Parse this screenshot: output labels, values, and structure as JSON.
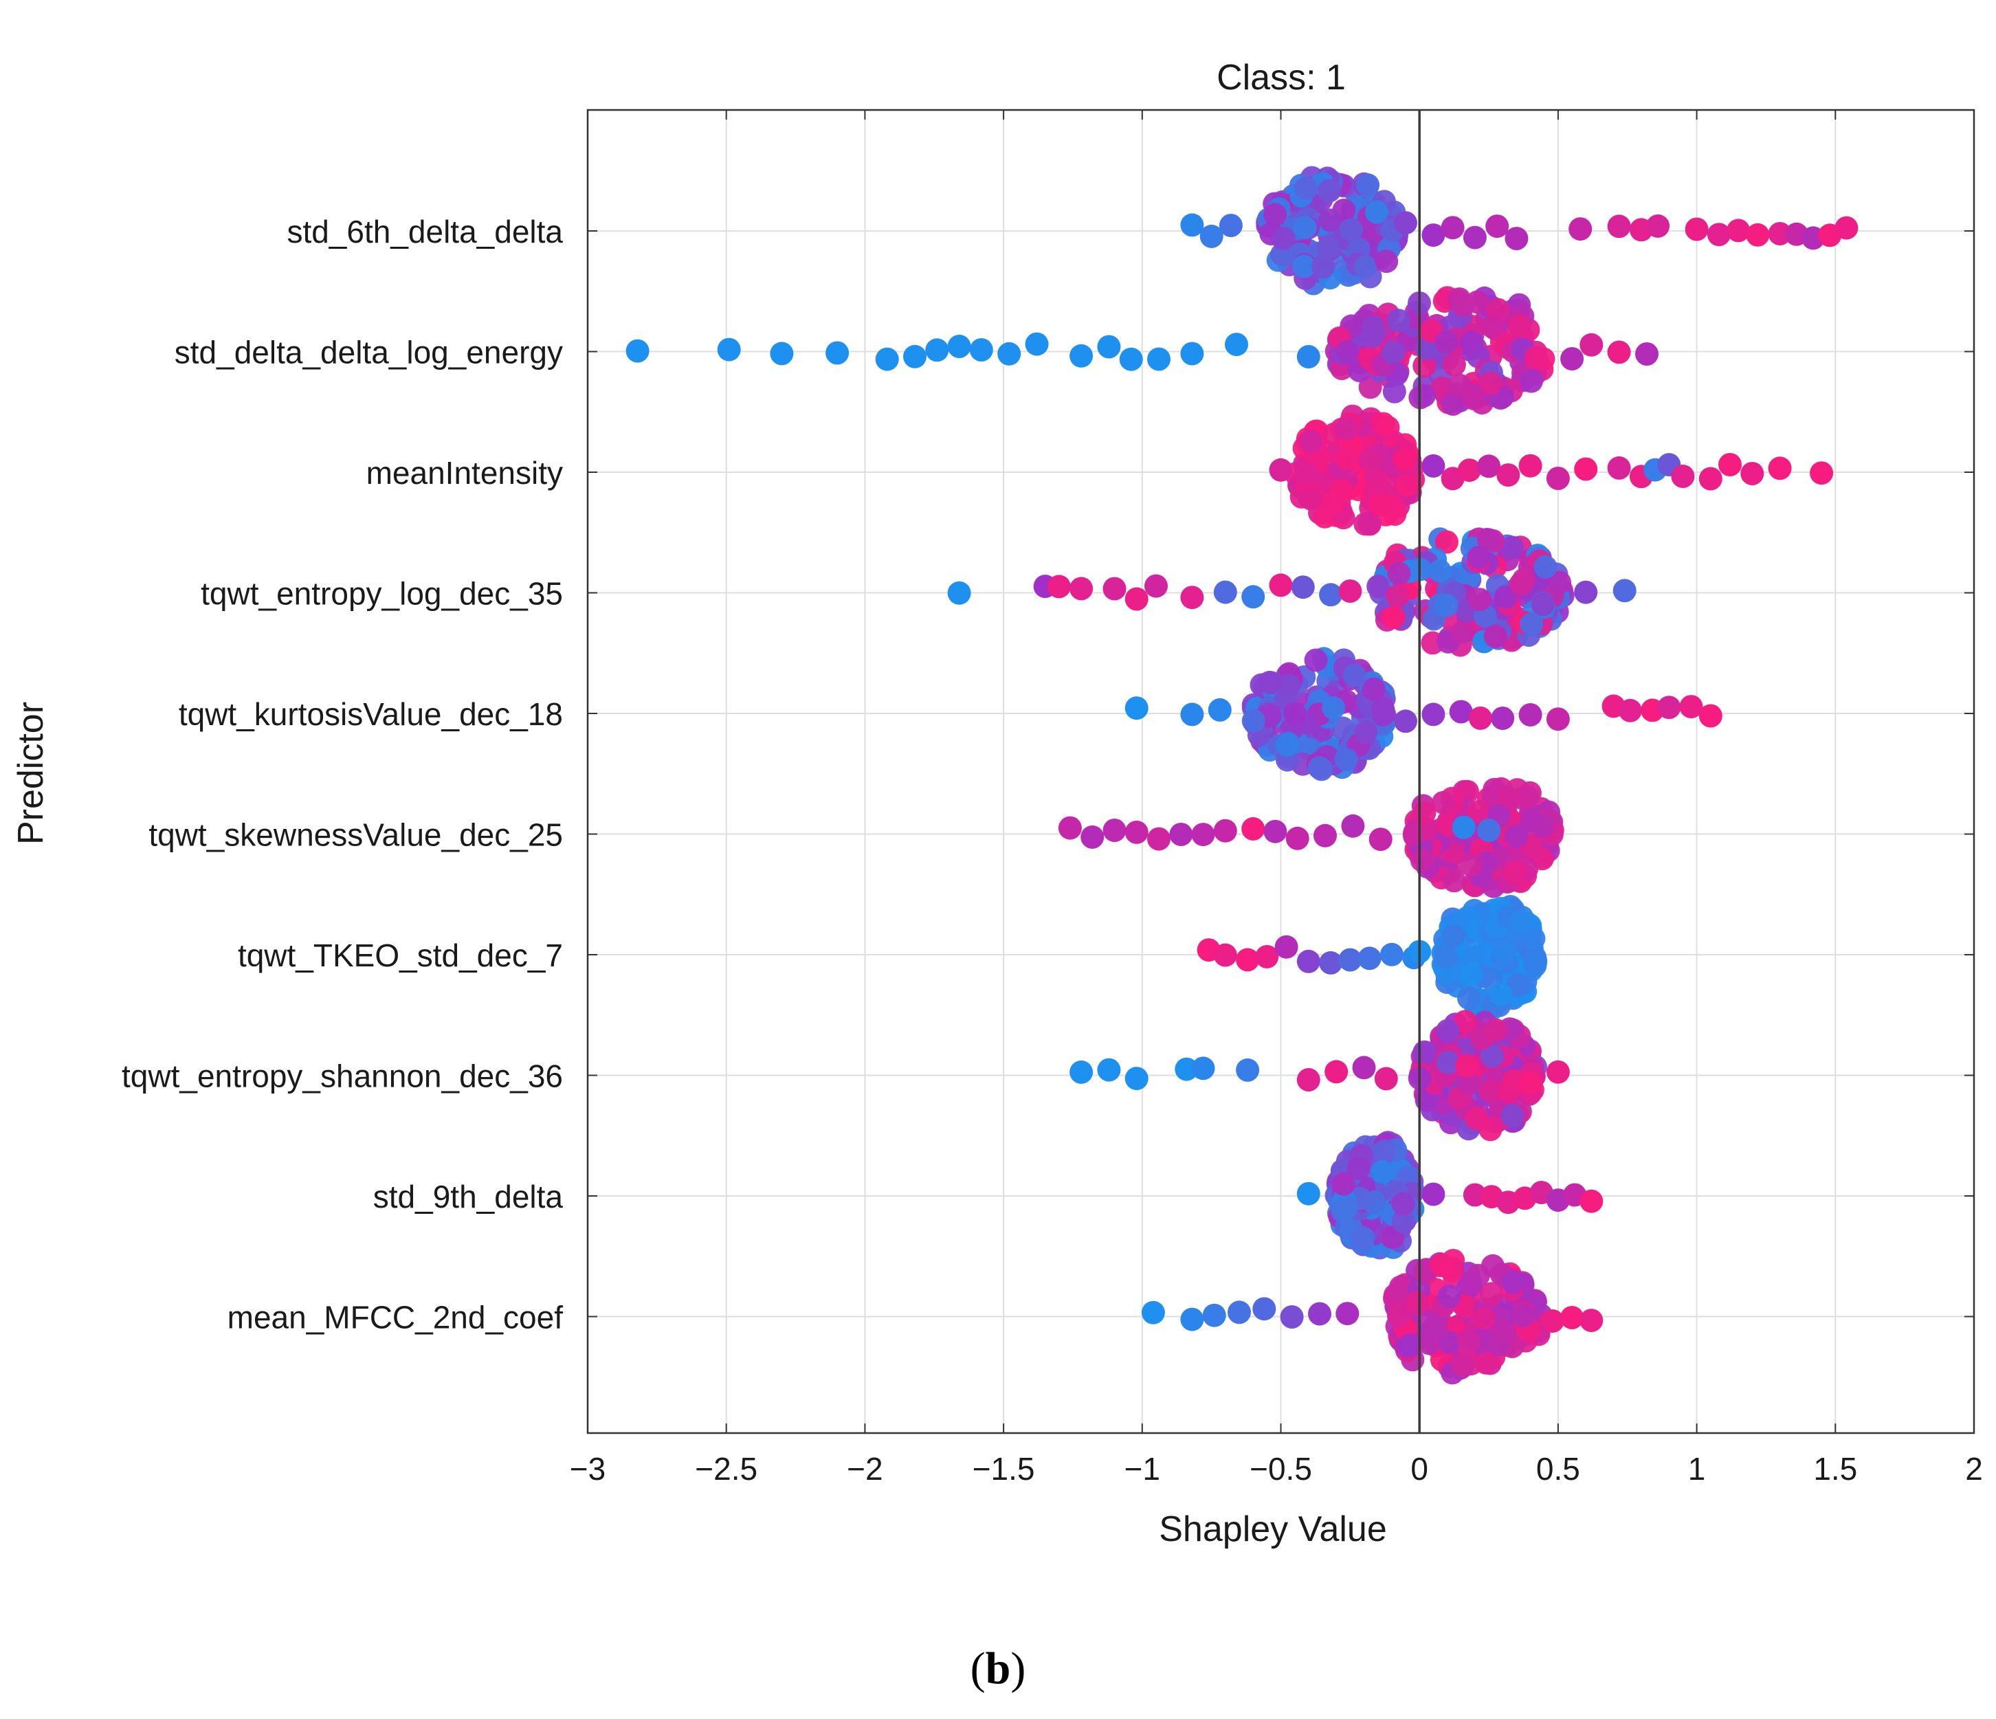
{
  "chart_data": {
    "type": "scatter",
    "subtype": "shapley-swarm",
    "title": "Class: 1",
    "xlabel": "Shapley Value",
    "ylabel": "Predictor",
    "xlim": [
      -3,
      2
    ],
    "xticks": [
      -3,
      -2.5,
      -2,
      -1.5,
      -1,
      -0.5,
      0,
      0.5,
      1,
      1.5,
      2
    ],
    "xtick_labels": [
      "−3",
      "−2.5",
      "−2",
      "−1.5",
      "−1",
      "−0.5",
      "0",
      "0.5",
      "1",
      "1.5",
      "2"
    ],
    "grid": true,
    "zero_line": 0,
    "color_scale": {
      "low": "#1e90f0",
      "mid": "#a030c8",
      "high": "#ff1a78"
    },
    "predictors": [
      {
        "name": "std_6th_delta_delta",
        "range": [
          -0.82,
          1.55
        ],
        "body": [
          -0.55,
          -0.08
        ],
        "center": -0.32,
        "tail_color": "high",
        "points": [
          {
            "x": -0.82,
            "c": 0.05
          },
          {
            "x": -0.75,
            "c": 0.1
          },
          {
            "x": -0.68,
            "c": 0.15
          },
          {
            "x": -0.05,
            "c": 0.4
          },
          {
            "x": 0.05,
            "c": 0.5
          },
          {
            "x": 0.12,
            "c": 0.6
          },
          {
            "x": 0.2,
            "c": 0.55
          },
          {
            "x": 0.28,
            "c": 0.65
          },
          {
            "x": 0.35,
            "c": 0.6
          },
          {
            "x": 0.58,
            "c": 0.7
          },
          {
            "x": 0.72,
            "c": 0.8
          },
          {
            "x": 0.8,
            "c": 0.85
          },
          {
            "x": 0.86,
            "c": 0.8
          },
          {
            "x": 1.0,
            "c": 0.9
          },
          {
            "x": 1.08,
            "c": 0.85
          },
          {
            "x": 1.15,
            "c": 0.9
          },
          {
            "x": 1.22,
            "c": 0.95
          },
          {
            "x": 1.3,
            "c": 0.85
          },
          {
            "x": 1.36,
            "c": 0.7
          },
          {
            "x": 1.42,
            "c": 0.6
          },
          {
            "x": 1.48,
            "c": 0.95
          },
          {
            "x": 1.54,
            "c": 0.9
          }
        ]
      },
      {
        "name": "std_delta_delta_log_energy",
        "range": [
          -2.82,
          0.82
        ],
        "body": [
          -0.3,
          0.45
        ],
        "center": 0.25,
        "tail_color": "low",
        "points": [
          {
            "x": -2.82,
            "c": 0.0
          },
          {
            "x": -2.49,
            "c": 0.0
          },
          {
            "x": -2.3,
            "c": 0.0
          },
          {
            "x": -2.1,
            "c": 0.0
          },
          {
            "x": -1.92,
            "c": 0.0
          },
          {
            "x": -1.82,
            "c": 0.0
          },
          {
            "x": -1.74,
            "c": 0.0
          },
          {
            "x": -1.66,
            "c": 0.0
          },
          {
            "x": -1.58,
            "c": 0.0
          },
          {
            "x": -1.48,
            "c": 0.0
          },
          {
            "x": -1.38,
            "c": 0.0
          },
          {
            "x": -1.22,
            "c": 0.0
          },
          {
            "x": -1.12,
            "c": 0.0
          },
          {
            "x": -1.04,
            "c": 0.0
          },
          {
            "x": -0.94,
            "c": 0.0
          },
          {
            "x": -0.82,
            "c": 0.0
          },
          {
            "x": -0.66,
            "c": 0.0
          },
          {
            "x": -0.4,
            "c": 0.05
          },
          {
            "x": 0.55,
            "c": 0.6
          },
          {
            "x": 0.62,
            "c": 0.8
          },
          {
            "x": 0.72,
            "c": 0.9
          },
          {
            "x": 0.82,
            "c": 0.6
          }
        ]
      },
      {
        "name": "meanIntensity",
        "range": [
          -0.5,
          1.46
        ],
        "body": [
          -0.45,
          -0.02
        ],
        "center": -0.22,
        "tail_color": "high",
        "points": [
          {
            "x": -0.5,
            "c": 0.8
          },
          {
            "x": 0.05,
            "c": 0.5
          },
          {
            "x": 0.12,
            "c": 0.85
          },
          {
            "x": 0.18,
            "c": 0.9
          },
          {
            "x": 0.25,
            "c": 0.7
          },
          {
            "x": 0.32,
            "c": 0.85
          },
          {
            "x": 0.4,
            "c": 0.9
          },
          {
            "x": 0.5,
            "c": 0.75
          },
          {
            "x": 0.6,
            "c": 0.95
          },
          {
            "x": 0.72,
            "c": 0.8
          },
          {
            "x": 0.8,
            "c": 0.9
          },
          {
            "x": 0.85,
            "c": 0.1
          },
          {
            "x": 0.9,
            "c": 0.3
          },
          {
            "x": 0.95,
            "c": 0.85
          },
          {
            "x": 1.05,
            "c": 0.9
          },
          {
            "x": 1.12,
            "c": 0.95
          },
          {
            "x": 1.2,
            "c": 0.9
          },
          {
            "x": 1.3,
            "c": 0.95
          },
          {
            "x": 1.45,
            "c": 0.95
          }
        ]
      },
      {
        "name": "tqwt_entropy_log_dec_35",
        "range": [
          -1.66,
          0.74
        ],
        "body": [
          -0.15,
          0.52
        ],
        "center": 0.15,
        "tail_color": "mixed",
        "points": [
          {
            "x": -1.66,
            "c": 0.0
          },
          {
            "x": -1.35,
            "c": 0.5
          },
          {
            "x": -1.3,
            "c": 0.9
          },
          {
            "x": -1.22,
            "c": 0.85
          },
          {
            "x": -1.1,
            "c": 0.8
          },
          {
            "x": -1.02,
            "c": 0.9
          },
          {
            "x": -0.95,
            "c": 0.75
          },
          {
            "x": -0.82,
            "c": 0.85
          },
          {
            "x": -0.7,
            "c": 0.2
          },
          {
            "x": -0.6,
            "c": 0.1
          },
          {
            "x": -0.5,
            "c": 0.9
          },
          {
            "x": -0.42,
            "c": 0.3
          },
          {
            "x": -0.32,
            "c": 0.2
          },
          {
            "x": -0.25,
            "c": 0.85
          },
          {
            "x": 0.6,
            "c": 0.4
          },
          {
            "x": 0.74,
            "c": 0.2
          }
        ]
      },
      {
        "name": "tqwt_kurtosisValue_dec_18",
        "range": [
          -1.02,
          1.06
        ],
        "body": [
          -0.6,
          -0.12
        ],
        "center": -0.35,
        "tail_color": "high",
        "points": [
          {
            "x": -1.02,
            "c": 0.0
          },
          {
            "x": -0.82,
            "c": 0.05
          },
          {
            "x": -0.72,
            "c": 0.05
          },
          {
            "x": -0.05,
            "c": 0.4
          },
          {
            "x": 0.05,
            "c": 0.45
          },
          {
            "x": 0.15,
            "c": 0.5
          },
          {
            "x": 0.22,
            "c": 0.85
          },
          {
            "x": 0.3,
            "c": 0.55
          },
          {
            "x": 0.4,
            "c": 0.6
          },
          {
            "x": 0.5,
            "c": 0.7
          },
          {
            "x": 0.7,
            "c": 0.9
          },
          {
            "x": 0.76,
            "c": 0.85
          },
          {
            "x": 0.84,
            "c": 0.95
          },
          {
            "x": 0.9,
            "c": 0.8
          },
          {
            "x": 0.98,
            "c": 0.9
          },
          {
            "x": 1.05,
            "c": 0.95
          }
        ]
      },
      {
        "name": "tqwt_skewnessValue_dec_25",
        "range": [
          -1.26,
          0.48
        ],
        "body": [
          -0.02,
          0.48
        ],
        "center": 0.25,
        "tail_color": "mid",
        "points": [
          {
            "x": -1.26,
            "c": 0.7
          },
          {
            "x": -1.18,
            "c": 0.6
          },
          {
            "x": -1.1,
            "c": 0.65
          },
          {
            "x": -1.02,
            "c": 0.7
          },
          {
            "x": -0.94,
            "c": 0.75
          },
          {
            "x": -0.86,
            "c": 0.6
          },
          {
            "x": -0.78,
            "c": 0.65
          },
          {
            "x": -0.7,
            "c": 0.7
          },
          {
            "x": -0.6,
            "c": 0.95
          },
          {
            "x": -0.52,
            "c": 0.6
          },
          {
            "x": -0.44,
            "c": 0.7
          },
          {
            "x": -0.34,
            "c": 0.65
          },
          {
            "x": -0.24,
            "c": 0.6
          },
          {
            "x": -0.14,
            "c": 0.7
          },
          {
            "x": 0.16,
            "c": 0.05
          },
          {
            "x": 0.25,
            "c": 0.15
          }
        ]
      },
      {
        "name": "tqwt_TKEO_std_dec_7",
        "range": [
          -0.76,
          0.42
        ],
        "body": [
          0.08,
          0.42
        ],
        "center": 0.25,
        "tail_color": "low",
        "points": [
          {
            "x": -0.76,
            "c": 0.95
          },
          {
            "x": -0.7,
            "c": 0.9
          },
          {
            "x": -0.62,
            "c": 0.95
          },
          {
            "x": -0.55,
            "c": 0.9
          },
          {
            "x": -0.48,
            "c": 0.6
          },
          {
            "x": -0.4,
            "c": 0.4
          },
          {
            "x": -0.32,
            "c": 0.3
          },
          {
            "x": -0.25,
            "c": 0.2
          },
          {
            "x": -0.18,
            "c": 0.15
          },
          {
            "x": -0.1,
            "c": 0.1
          },
          {
            "x": -0.02,
            "c": 0.05
          },
          {
            "x": 0.0,
            "c": 0.0
          }
        ]
      },
      {
        "name": "tqwt_entropy_shannon_dec_36",
        "range": [
          -1.22,
          0.5
        ],
        "body": [
          0.0,
          0.42
        ],
        "center": 0.22,
        "tail_color": "low",
        "points": [
          {
            "x": -1.22,
            "c": 0.0
          },
          {
            "x": -1.12,
            "c": 0.0
          },
          {
            "x": -1.02,
            "c": 0.0
          },
          {
            "x": -0.84,
            "c": 0.0
          },
          {
            "x": -0.78,
            "c": 0.05
          },
          {
            "x": -0.62,
            "c": 0.1
          },
          {
            "x": -0.4,
            "c": 0.85
          },
          {
            "x": -0.3,
            "c": 0.9
          },
          {
            "x": -0.2,
            "c": 0.6
          },
          {
            "x": -0.12,
            "c": 0.85
          },
          {
            "x": 0.34,
            "c": 0.9
          },
          {
            "x": 0.4,
            "c": 0.95
          },
          {
            "x": 0.5,
            "c": 0.9
          }
        ]
      },
      {
        "name": "std_9th_delta",
        "range": [
          -0.4,
          0.62
        ],
        "body": [
          -0.3,
          -0.02
        ],
        "center": -0.15,
        "tail_color": "high",
        "points": [
          {
            "x": -0.4,
            "c": 0.0
          },
          {
            "x": 0.05,
            "c": 0.5
          },
          {
            "x": 0.2,
            "c": 0.8
          },
          {
            "x": 0.26,
            "c": 0.9
          },
          {
            "x": 0.32,
            "c": 0.85
          },
          {
            "x": 0.38,
            "c": 0.9
          },
          {
            "x": 0.44,
            "c": 0.8
          },
          {
            "x": 0.5,
            "c": 0.6
          },
          {
            "x": 0.56,
            "c": 0.7
          },
          {
            "x": 0.62,
            "c": 0.95
          }
        ]
      },
      {
        "name": "mean_MFCC_2nd_coef",
        "range": [
          -0.96,
          0.62
        ],
        "body": [
          -0.1,
          0.45
        ],
        "center": 0.12,
        "tail_color": "mixed",
        "points": [
          {
            "x": -0.96,
            "c": 0.0
          },
          {
            "x": -0.82,
            "c": 0.05
          },
          {
            "x": -0.74,
            "c": 0.1
          },
          {
            "x": -0.65,
            "c": 0.15
          },
          {
            "x": -0.56,
            "c": 0.2
          },
          {
            "x": -0.46,
            "c": 0.35
          },
          {
            "x": -0.36,
            "c": 0.45
          },
          {
            "x": -0.26,
            "c": 0.55
          },
          {
            "x": 0.48,
            "c": 0.9
          },
          {
            "x": 0.55,
            "c": 0.95
          },
          {
            "x": 0.62,
            "c": 0.9
          }
        ]
      }
    ]
  },
  "panel_label": {
    "open": "(",
    "letter": "b",
    "close": ")"
  }
}
